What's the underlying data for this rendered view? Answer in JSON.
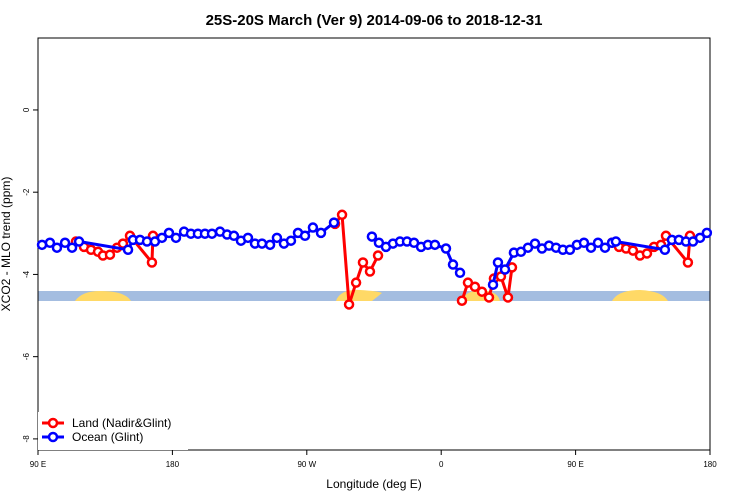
{
  "chart_data": {
    "type": "line",
    "title": "25S-20S March (Ver 9)   2014-09-06 to 2018-12-31",
    "x_label": "Longitude (deg E)",
    "y_label": "XCO2 - MLO trend (ppm)",
    "xlim": [
      90,
      540
    ],
    "xticks": [
      {
        "value": 90,
        "label": "90 E"
      },
      {
        "value": 180,
        "label": "180"
      },
      {
        "value": 270,
        "label": "90 W"
      },
      {
        "value": 360,
        "label": "0"
      },
      {
        "value": 450,
        "label": "90 E"
      },
      {
        "value": 540,
        "label": "180"
      }
    ],
    "ylim": [
      -8.27,
      1.75
    ],
    "yticks": [
      0,
      -2,
      -4,
      -6,
      -8
    ],
    "legend": "bottom-left",
    "series": [
      {
        "name": "Land (Nadir&Glint)",
        "color": "#ff0000",
        "x": [
          115.4,
          120.8,
          125.5,
          130.2,
          133.5,
          138.2,
          142.9,
          146.9,
          151.6,
          166.3,
          167.0,
          null,
          288.9,
          293.6,
          298.3,
          303.0,
          307.6,
          312.3,
          317.7,
          null,
          373.9,
          377.9,
          382.6,
          387.3,
          392.0,
          395.3,
          400.0,
          404.7,
          407.4,
          null,
          474.4,
          479.1,
          483.8,
          488.4,
          493.1,
          497.8,
          502.5,
          507.2,
          510.5,
          525.2,
          526.6
        ],
        "values": [
          -3.2,
          -3.33,
          -3.4,
          -3.45,
          -3.54,
          -3.52,
          -3.35,
          -3.25,
          -3.06,
          -3.71,
          -3.06,
          null,
          -2.77,
          -2.55,
          -4.73,
          -4.2,
          -3.71,
          -3.93,
          -3.54,
          null,
          -4.64,
          -4.2,
          -4.3,
          -4.42,
          -4.56,
          -4.1,
          -4.05,
          -4.56,
          -3.83,
          null,
          -3.23,
          -3.33,
          -3.37,
          -3.42,
          -3.54,
          -3.49,
          -3.33,
          -3.28,
          -3.06,
          -3.71,
          -3.06
        ]
      },
      {
        "name": "Ocean (Glint)",
        "color": "#0000ff",
        "x": [
          92.7,
          98.0,
          102.7,
          108.1,
          112.8,
          117.5,
          150.3,
          153.6,
          158.3,
          163.0,
          168.3,
          173.0,
          177.7,
          182.4,
          187.8,
          192.4,
          197.1,
          201.8,
          206.5,
          211.9,
          216.6,
          221.2,
          225.9,
          230.6,
          235.3,
          240.0,
          245.4,
          250.0,
          254.7,
          259.4,
          264.1,
          268.8,
          274.1,
          279.5,
          288.2,
          null,
          313.6,
          318.3,
          323.0,
          327.7,
          332.4,
          337.1,
          341.8,
          346.5,
          351.1,
          355.8,
          363.2,
          367.9,
          372.6,
          null,
          394.7,
          398.0,
          402.7,
          408.7,
          413.4,
          418.1,
          422.8,
          427.5,
          432.2,
          436.9,
          441.5,
          446.2,
          450.9,
          455.6,
          460.3,
          465.0,
          469.7,
          474.4,
          477.0,
          509.8,
          514.5,
          519.2,
          523.9,
          528.6,
          533.3,
          537.9
        ],
        "values": [
          -3.28,
          -3.23,
          -3.35,
          -3.23,
          -3.35,
          -3.2,
          -3.4,
          -3.16,
          -3.16,
          -3.2,
          -3.2,
          -3.11,
          -2.99,
          -3.11,
          -2.96,
          -3.01,
          -3.01,
          -3.01,
          -3.01,
          -2.96,
          -3.03,
          -3.06,
          -3.18,
          -3.11,
          -3.25,
          -3.25,
          -3.28,
          -3.11,
          -3.25,
          -3.18,
          -2.99,
          -3.06,
          -2.86,
          -2.99,
          -2.74,
          null,
          -3.08,
          -3.23,
          -3.33,
          -3.25,
          -3.2,
          -3.2,
          -3.23,
          -3.33,
          -3.28,
          -3.28,
          -3.37,
          -3.76,
          -3.96,
          null,
          -4.25,
          -3.71,
          -3.88,
          -3.47,
          -3.45,
          -3.35,
          -3.25,
          -3.37,
          -3.3,
          -3.35,
          -3.4,
          -3.4,
          -3.28,
          -3.23,
          -3.35,
          -3.23,
          -3.35,
          -3.23,
          -3.2,
          -3.4,
          -3.16,
          -3.16,
          -3.2,
          -3.2,
          -3.11,
          -2.99
        ]
      }
    ]
  }
}
